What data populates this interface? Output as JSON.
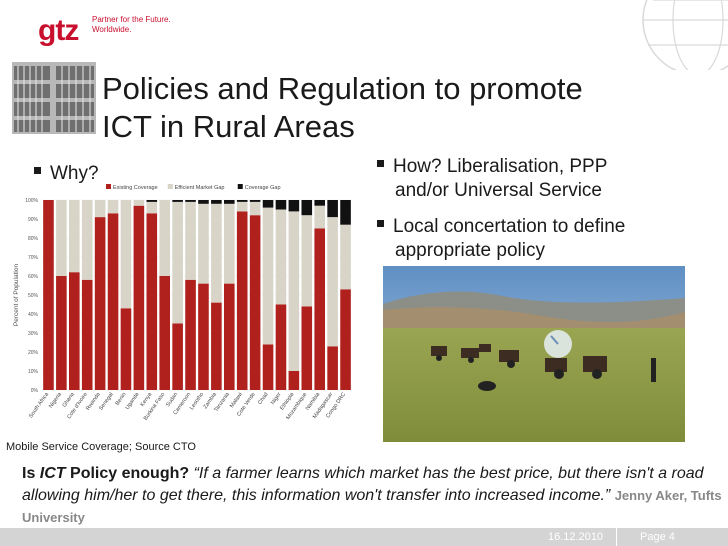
{
  "header": {
    "logo_text": "gtz",
    "tagline_line1": "Partner for the Future.",
    "tagline_line2": "Worldwide."
  },
  "slide": {
    "title_line1": "Policies and Regulation to promote",
    "title_line2": "ICT in Rural Areas",
    "left_bullet": "Why?",
    "right_bullets": [
      {
        "line1": "How? Liberalisation, PPP",
        "line2": "and/or Universal Service"
      },
      {
        "line1": "Local concertation to define",
        "line2": "appropriate policy"
      }
    ],
    "chart_caption": "Mobile Service Coverage; Source CTO",
    "quote_lead": "Is ",
    "quote_ict": "ICT",
    "quote_policy": " Policy enough?",
    "quote_text": " “If a farmer learns which market has the best price, but there isn't a road allowing him/her to get there, this information won't transfer into increased income.”",
    "quote_author": "Jenny Aker, Tufts University"
  },
  "footer": {
    "date": "16.12.2010",
    "page": "Page 4"
  },
  "colors": {
    "brand_red": "#c8102e",
    "existing_coverage": "#b0201c",
    "efficient_gap": "#d8d4c8",
    "coverage_gap": "#111111"
  },
  "chart_data": {
    "type": "bar",
    "stacked": true,
    "ylabel": "Percent of Population",
    "ylim": [
      0,
      100
    ],
    "yticks": [
      "0%",
      "10%",
      "20%",
      "30%",
      "40%",
      "50%",
      "60%",
      "70%",
      "80%",
      "90%",
      "100%"
    ],
    "legend_position": "top",
    "categories": [
      "South Africa",
      "Nigeria",
      "Ghana",
      "Cote d'Ivoire",
      "Rwanda",
      "Senegal",
      "Benin",
      "Uganda",
      "Kenya",
      "Burkina Faso",
      "Sudan",
      "Cameroon",
      "Lesotho",
      "Zambia",
      "Tanzania",
      "Malawi",
      "Cote Verde",
      "Chad",
      "Niger",
      "Ethiopia",
      "Mozambique",
      "Namibia",
      "Madagascar",
      "Congo DRC"
    ],
    "series": [
      {
        "name": "Existing Coverage",
        "values": [
          100,
          60,
          62,
          58,
          91,
          93,
          43,
          97,
          93,
          60,
          35,
          58,
          56,
          46,
          56,
          94,
          92,
          24,
          45,
          10,
          44,
          85,
          23,
          53
        ]
      },
      {
        "name": "Efficient Market Gap",
        "values": [
          0,
          40,
          38,
          42,
          9,
          7,
          57,
          3,
          6,
          40,
          64,
          41,
          42,
          52,
          42,
          5,
          7,
          72,
          50,
          84,
          48,
          12,
          68,
          34
        ]
      },
      {
        "name": "Coverage Gap",
        "values": [
          0,
          0,
          0,
          0,
          0,
          0,
          0,
          0,
          1,
          0,
          1,
          1,
          2,
          2,
          2,
          1,
          1,
          4,
          5,
          6,
          8,
          3,
          9,
          13
        ]
      }
    ]
  }
}
